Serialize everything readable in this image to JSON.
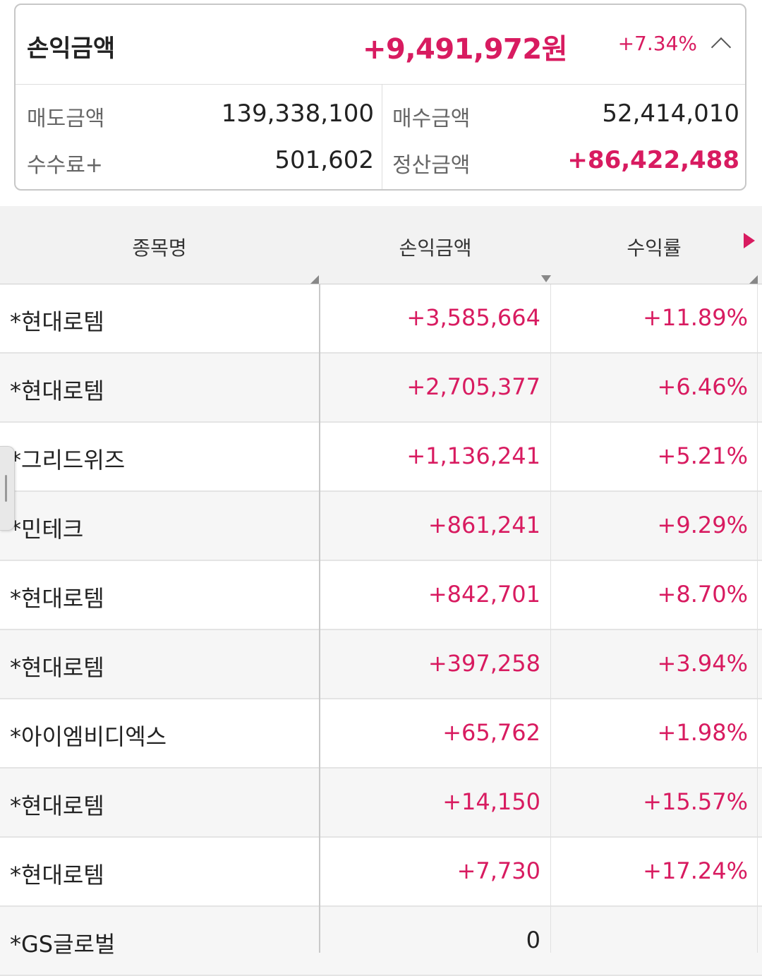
{
  "summary": {
    "label": "손익금액",
    "amount": "+9,491,972원",
    "rate": "+7.34%",
    "sell_label": "매도금액",
    "sell_value": "139,338,100",
    "buy_label": "매수금액",
    "buy_value": "52,414,010",
    "fee_label": "수수료+",
    "fee_value": "501,602",
    "settle_label": "정산금액",
    "settle_value": "+86,422,488"
  },
  "table": {
    "headers": {
      "name": "종목명",
      "amount": "손익금액",
      "rate": "수익률"
    },
    "rows": [
      {
        "name": "*현대로템",
        "amount": "+3,585,664",
        "rate": "+11.89%"
      },
      {
        "name": "*현대로템",
        "amount": "+2,705,377",
        "rate": "+6.46%"
      },
      {
        "name": "*그리드위즈",
        "amount": "+1,136,241",
        "rate": "+5.21%"
      },
      {
        "name": "*민테크",
        "amount": "+861,241",
        "rate": "+9.29%"
      },
      {
        "name": "*현대로템",
        "amount": "+842,701",
        "rate": "+8.70%"
      },
      {
        "name": "*현대로템",
        "amount": "+397,258",
        "rate": "+3.94%"
      },
      {
        "name": "*아이엠비디엑스",
        "amount": "+65,762",
        "rate": "+1.98%"
      },
      {
        "name": "*현대로템",
        "amount": "+14,150",
        "rate": "+15.57%"
      },
      {
        "name": "*현대로템",
        "amount": "+7,730",
        "rate": "+17.24%"
      },
      {
        "name": "*GS글로벌",
        "amount": "0",
        "rate": ""
      }
    ]
  },
  "icons": {
    "collapse": "chevron-up-icon",
    "scroll_right": "triangle-right-icon",
    "side_handle": "drag-handle-icon"
  },
  "colors": {
    "accent": "#d81b60",
    "header_bg": "#f2f2f2",
    "row_alt_bg": "#f6f6f6"
  }
}
